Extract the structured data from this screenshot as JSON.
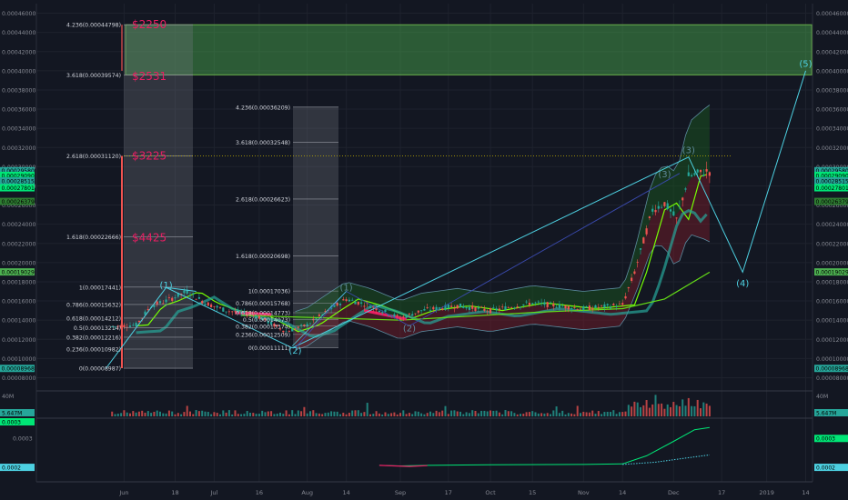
{
  "chart_data": {
    "type": "candlestick",
    "instrument": "crypto/BTC pair (price axis in BTC)",
    "title": "",
    "price_axis": {
      "ticks": [
        "0.00046000",
        "0.00044000",
        "0.00042000",
        "0.00040000",
        "0.00038000",
        "0.00036000",
        "0.00034000",
        "0.00032000",
        "0.00030000",
        "0.00028000",
        "0.00026000",
        "0.00024000",
        "0.00022000",
        "0.00020000",
        "0.00018000",
        "0.00016000",
        "0.00014000",
        "0.00012000",
        "0.00010000",
        "0.00008000"
      ],
      "right_ticks": [
        "0.00046000",
        "0.00044000",
        "0.00042000",
        "0.00040000",
        "0.00038000",
        "0.00036000",
        "0.00034000",
        "0.00032000",
        "0.00030000",
        "0.00028000",
        "0.00026000",
        "0.00024000",
        "0.00022000",
        "0.00020000",
        "0.00018000",
        "0.00016000",
        "0.00014000",
        "0.00012000",
        "0.00010000",
        "0.00008000"
      ],
      "range": [
        7e-05,
        0.00047
      ]
    },
    "time_axis": {
      "ticks": [
        "Jun",
        "18",
        "Jul",
        "16",
        "Aug",
        "14",
        "Sep",
        "17",
        "Oct",
        "15",
        "Nov",
        "14",
        "Dec",
        "17",
        "2019",
        "14"
      ]
    },
    "price_badges": {
      "left": [
        {
          "text": "0.00029580",
          "color": "#26a69a"
        },
        {
          "text": "0.00029090",
          "color": "#00e676"
        },
        {
          "text": "0.00028515",
          "color": "#26a69a"
        },
        {
          "text": "0.00027801",
          "color": "#00e676"
        },
        {
          "text": "0.00026379",
          "color": "#2e7d32"
        },
        {
          "text": "0.00019029",
          "color": "#4caf50"
        },
        {
          "text": "0.00008968",
          "color": "#26a69a"
        }
      ],
      "right": [
        {
          "text": "0.00029580",
          "color": "#26a69a"
        },
        {
          "text": "0.00029090",
          "color": "#00e676"
        },
        {
          "text": "0.00028515",
          "color": "#26a69a"
        },
        {
          "text": "0.00027801",
          "color": "#00e676"
        },
        {
          "text": "0.00026379",
          "color": "#2e7d32"
        },
        {
          "text": "0.00019029",
          "color": "#4caf50"
        },
        {
          "text": "0.00008968",
          "color": "#26a69a"
        }
      ]
    },
    "fibonacci_1": {
      "levels": [
        {
          "label": "4.236(0.00044798)",
          "value": 0.00044798
        },
        {
          "label": "3.618(0.00039574)",
          "value": 0.00039574
        },
        {
          "label": "2.618(0.00031120)",
          "value": 0.0003112
        },
        {
          "label": "1.618(0.00022666)",
          "value": 0.00022666
        },
        {
          "label": "1(0.00017441)",
          "value": 0.00017441
        },
        {
          "label": "0.786(0.00015632)",
          "value": 0.00015632
        },
        {
          "label": "0.618(0.00014212)",
          "value": 0.00014212
        },
        {
          "label": "0.5(0.00013214)",
          "value": 0.00013214
        },
        {
          "label": "0.382(0.00012216)",
          "value": 0.00012216
        },
        {
          "label": "0.236(0.00010982)",
          "value": 0.00010982
        },
        {
          "label": "0(0.00008987)",
          "value": 8.987e-05
        }
      ],
      "targets": [
        "$2250",
        "$2531",
        "$3225",
        "$4425"
      ]
    },
    "fibonacci_2": {
      "levels": [
        {
          "label": "4.236(0.00036209)",
          "value": 0.00036209
        },
        {
          "label": "3.618(0.00032548)",
          "value": 0.00032548
        },
        {
          "label": "2.618(0.00026623)",
          "value": 0.00026623
        },
        {
          "label": "1.618(0.00020698)",
          "value": 0.00020698
        },
        {
          "label": "1(0.00017036)",
          "value": 0.00017036
        },
        {
          "label": "0.786(0.00015768)",
          "value": 0.00015768
        },
        {
          "label": "0.618(0.00014773)",
          "value": 0.00014773
        },
        {
          "label": "0.5(0.00014073)",
          "value": 0.00014073
        },
        {
          "label": "0.382(0.00013374)",
          "value": 0.00013374
        },
        {
          "label": "0.236(0.00012509)",
          "value": 0.00012509
        },
        {
          "label": "0(0.00011111)",
          "value": 0.00011111
        }
      ]
    },
    "wave_labels": [
      {
        "text": "(1)",
        "x": "2018-06-15",
        "y": 0.000176,
        "color": "#4dd0e1"
      },
      {
        "text": "(2)",
        "x": "2018-07-28",
        "y": 0.000108,
        "color": "#4dd0e1"
      },
      {
        "text": "(1)",
        "x": "2018-08-14",
        "y": 0.000174,
        "color": "#5f8a9a"
      },
      {
        "text": "(2)",
        "x": "2018-09-04",
        "y": 0.000131,
        "color": "#5f8a9a"
      },
      {
        "text": "(3)",
        "x": "2018-11-28",
        "y": 0.000292,
        "color": "#5f8a9a"
      },
      {
        "text": "(3)",
        "x": "2018-12-06",
        "y": 0.000317,
        "color": "#5f8a9a"
      },
      {
        "text": "(4)",
        "x": "2018-12-24",
        "y": 0.000178,
        "color": "#4dd0e1"
      },
      {
        "text": "(5)",
        "x": "2019-01-14",
        "y": 0.000407,
        "color": "#4dd0e1"
      }
    ],
    "target_zone": {
      "from": 0.00039574,
      "to": 0.00044798,
      "color": "#4caf50"
    },
    "volume": {
      "label": "40M",
      "last_value": "5.647M"
    },
    "indicator": {
      "ticks": [
        "0.0003",
        "0.0002"
      ],
      "badges": [
        "0.0003",
        "0.0002"
      ],
      "left_badges": [
        "5.647M",
        "0.0003",
        "0.0002"
      ]
    }
  }
}
